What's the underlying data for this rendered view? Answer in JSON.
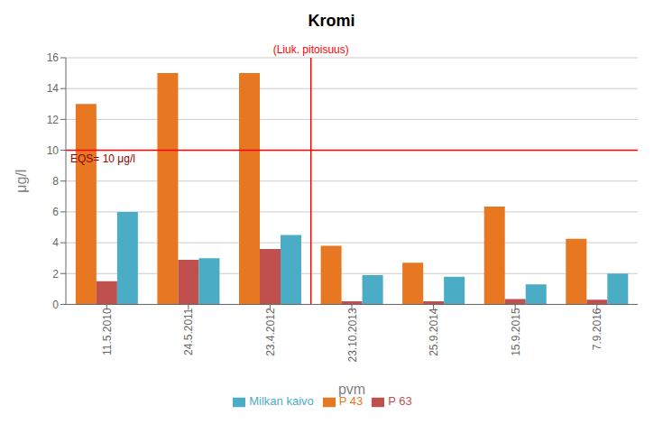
{
  "chart_data": {
    "type": "bar",
    "title": "Kromi",
    "xlabel": "pvm",
    "ylabel": "μg/l",
    "categories": [
      "11.5.2010",
      "24.5.2011",
      "23.4.2012",
      "23.10.2013",
      "25.9.2014",
      "15.9.2015",
      "7.9.2016"
    ],
    "series": [
      {
        "name": "P 43",
        "color": "#E87722",
        "values": [
          13.0,
          15.0,
          15.0,
          3.8,
          2.7,
          6.35,
          4.25
        ]
      },
      {
        "name": "P 63",
        "color": "#C0504D",
        "values": [
          1.5,
          2.9,
          3.6,
          0.2,
          0.2,
          0.35,
          0.3
        ]
      },
      {
        "name": "Milkan kaivo",
        "color": "#4BACC6",
        "values": [
          6.0,
          3.0,
          4.5,
          1.9,
          1.8,
          1.3,
          2.0
        ]
      }
    ],
    "ylim": [
      0,
      16
    ],
    "yticks": [
      0,
      2,
      4,
      6,
      8,
      10,
      12,
      14,
      16
    ],
    "grid": true,
    "legend": "bottom",
    "annotations": [
      {
        "type": "hline",
        "y": 10,
        "label": "EQS= 10 μg/l",
        "color": "red"
      },
      {
        "type": "vline",
        "after": "23.4.2012",
        "label": "(Liuk. pitoisuus)",
        "color": "red"
      }
    ]
  }
}
